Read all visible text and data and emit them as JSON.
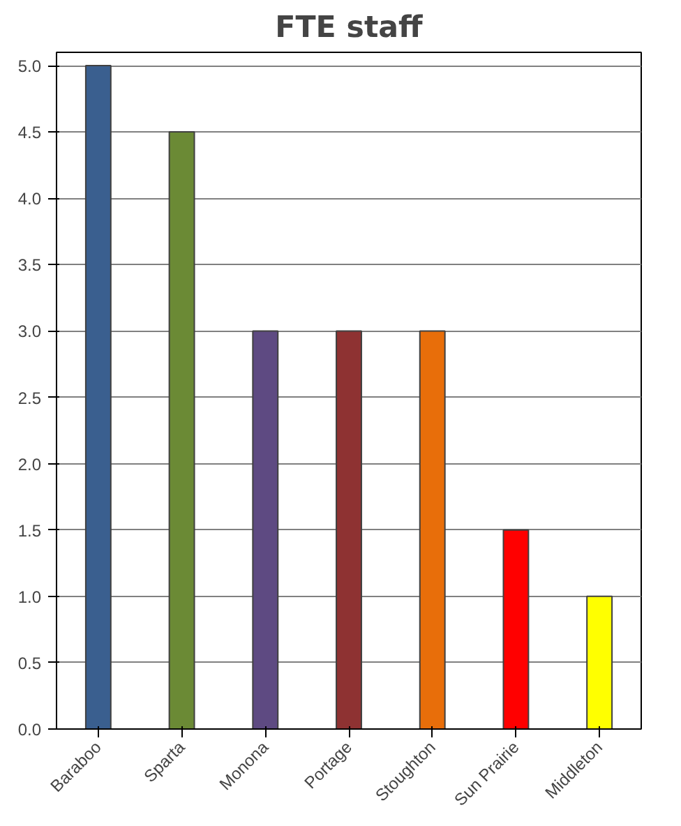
{
  "chart_data": {
    "type": "bar",
    "title": "FTE staff",
    "categories": [
      "Baraboo",
      "Sparta",
      "Monona",
      "Portage",
      "Stoughton",
      "Sun Prairie",
      "Middleton"
    ],
    "values": [
      5.0,
      4.5,
      3.0,
      3.0,
      3.0,
      1.5,
      1.0
    ],
    "colors": [
      "#3a5f8f",
      "#6b8a35",
      "#5e4a82",
      "#8e3232",
      "#e86e0a",
      "#ff0000",
      "#ffff00"
    ],
    "ylim": [
      0,
      5.0
    ],
    "yticks": [
      {
        "value": 0,
        "label": "0.0"
      },
      {
        "value": 0.5,
        "label": "0.5"
      },
      {
        "value": 1,
        "label": "1.0"
      },
      {
        "value": 1.5,
        "label": "1.5"
      },
      {
        "value": 2,
        "label": "2.0"
      },
      {
        "value": 2.5,
        "label": "2.5"
      },
      {
        "value": 3,
        "label": "3.0"
      },
      {
        "value": 3.5,
        "label": "3.5"
      },
      {
        "value": 4,
        "label": "4.0"
      },
      {
        "value": 4.5,
        "label": "4.5"
      },
      {
        "value": 5,
        "label": "5.0"
      }
    ],
    "grid": "y"
  }
}
